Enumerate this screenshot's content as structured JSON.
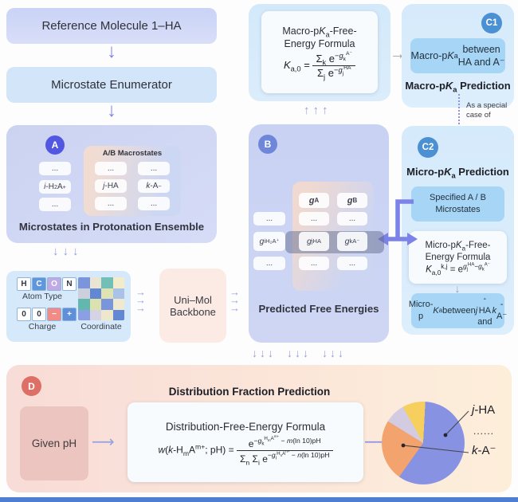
{
  "arrows": {
    "down": "↓",
    "right": "→",
    "long_right": "⟶",
    "up3": "↑↑↑",
    "down3": "↓↓↓"
  },
  "colors": {
    "accent_purple": "#7b82e8",
    "panel_periwinkle": "#ccd4f2",
    "panel_lightblue": "#d5eafb",
    "badge_a": "#5257e2",
    "badge_b": "#6e87d8",
    "badge_c": "#4a90d2",
    "badge_d": "#dd6f66",
    "backbone_peach": "#fcebe4",
    "panel_pink": "#f8dcd7"
  },
  "left_flow": {
    "reference": "Reference Molecule 1–HA",
    "enumerator": "Microstate Enumerator"
  },
  "panel_a": {
    "badge": "A",
    "inner_title": "A/B Macrostates",
    "col_i": [
      [
        [
          "txt",
          "..."
        ]
      ],
      [
        [
          "it",
          "i"
        ],
        [
          "txt",
          "-H"
        ],
        [
          "sub",
          "2"
        ],
        [
          "txt",
          "A"
        ],
        [
          "sup",
          "+"
        ]
      ],
      [
        [
          "txt",
          "..."
        ]
      ]
    ],
    "col_j": [
      [
        [
          "txt",
          "..."
        ]
      ],
      [
        [
          "it",
          "j"
        ],
        [
          "txt",
          "-HA"
        ]
      ],
      [
        [
          "txt",
          "..."
        ]
      ]
    ],
    "col_k": [
      [
        [
          "txt",
          "..."
        ]
      ],
      [
        [
          "it",
          "k"
        ],
        [
          "txt",
          "-A"
        ],
        [
          "sup",
          "−"
        ]
      ],
      [
        [
          "txt",
          "..."
        ]
      ]
    ],
    "caption": "Microstates in Protonation Ensemble"
  },
  "encoder": {
    "atom_cells": [
      {
        "label": "H",
        "bg": "#ffffff",
        "fg": "#333644"
      },
      {
        "label": "C",
        "bg": "#5f97dd",
        "fg": "#ffffff"
      },
      {
        "label": "O",
        "bg": "#c0aae6",
        "fg": "#ffffff"
      },
      {
        "label": "N",
        "bg": "#ffffff",
        "fg": "#333644"
      }
    ],
    "atom_label": "Atom Type",
    "charge_cells": [
      {
        "label": "0",
        "bg": "#ffffff",
        "fg": "#333644"
      },
      {
        "label": "0",
        "bg": "#ffffff",
        "fg": "#333644"
      },
      {
        "label": "−",
        "bg": "#f28b85",
        "fg": "#ffffff"
      },
      {
        "label": "+",
        "bg": "#5f8fd9",
        "fg": "#ffffff"
      }
    ],
    "charge_label": "Charge",
    "coordinate_label": "Coordinate",
    "grid_colors": [
      "#7b95dd",
      "#eae5d3",
      "#72bfb7",
      "#f3ecca",
      "#ccd0dc",
      "#6288d4",
      "#dde3b2",
      "#a9c3e8",
      "#62b8ae",
      "#dbe2af",
      "#7b95dd",
      "#efe9cf",
      "#8aa0e2",
      "#d6d4e4",
      "#eee7cb",
      "#6288d4"
    ]
  },
  "backbone": "Uni–Mol Backbone",
  "macro_panel": {
    "title": [
      [
        "txt",
        "Macro-p"
      ],
      [
        "it",
        "K"
      ],
      [
        "sub",
        "a"
      ],
      [
        "txt",
        "-Free-"
      ],
      [
        "br"
      ],
      [
        "txt",
        "Energy Formula"
      ]
    ],
    "formula": [
      [
        "it",
        "K"
      ],
      [
        "sub",
        "a,0"
      ],
      [
        "txt",
        " = "
      ],
      [
        "frac",
        [
          [
            "txt",
            "Σ"
          ],
          [
            "sub",
            "k"
          ],
          [
            "txt",
            " e"
          ],
          [
            "sup",
            [
              [
                "txt",
                "−"
              ],
              [
                "it",
                "g"
              ],
              [
                "sub",
                "k"
              ],
              [
                "sup",
                "A⁻"
              ]
            ]
          ]
        ],
        [
          [
            "txt",
            "Σ"
          ],
          [
            "sub",
            "j"
          ],
          [
            "txt",
            " e"
          ],
          [
            "sup",
            [
              [
                "txt",
                "−"
              ],
              [
                "it",
                "g"
              ],
              [
                "sub",
                "j"
              ],
              [
                "sup",
                "HA"
              ]
            ]
          ]
        ]
      ]
    ]
  },
  "c1": {
    "badge": "C1",
    "result_box": [
      [
        "txt",
        "Macro-p"
      ],
      [
        "it",
        "K"
      ],
      [
        "sub",
        "a"
      ],
      [
        "txt",
        " between"
      ],
      [
        "br"
      ],
      [
        "txt",
        "HA and A⁻"
      ]
    ],
    "label": [
      [
        "txt",
        "Macro-p"
      ],
      [
        "it",
        "K"
      ],
      [
        "sub",
        "a"
      ],
      [
        "txt",
        " Prediction"
      ]
    ],
    "note": "As a special case of"
  },
  "panel_b": {
    "badge": "B",
    "header_a": [
      [
        "it",
        "g"
      ],
      [
        "sup",
        "A"
      ]
    ],
    "header_b": [
      [
        "it",
        "g"
      ],
      [
        "sup",
        "B"
      ]
    ],
    "col_i": [
      [
        [
          "txt",
          "..."
        ]
      ],
      [
        [
          "it",
          "g"
        ],
        [
          "sub",
          "i"
        ],
        [
          "sup",
          "H₂A⁺"
        ]
      ],
      [
        [
          "txt",
          "..."
        ]
      ]
    ],
    "col_a": [
      [
        [
          "txt",
          "..."
        ]
      ],
      [
        [
          "it",
          "g"
        ],
        [
          "sub",
          "j"
        ],
        [
          "sup",
          "HA"
        ]
      ],
      [
        [
          "txt",
          "..."
        ]
      ]
    ],
    "col_b": [
      [
        [
          "txt",
          "..."
        ]
      ],
      [
        [
          "it",
          "g"
        ],
        [
          "sub",
          "k"
        ],
        [
          "sup",
          "A⁻"
        ]
      ],
      [
        [
          "txt",
          "..."
        ]
      ]
    ],
    "caption": "Predicted Free Energies"
  },
  "c2": {
    "badge": "C2",
    "title": [
      [
        "txt",
        "Micro-p"
      ],
      [
        "it",
        "K"
      ],
      [
        "sub",
        "a"
      ],
      [
        "txt",
        " Prediction"
      ]
    ],
    "spec_box": [
      [
        "txt",
        "Specified A / B"
      ],
      [
        "br"
      ],
      [
        "txt",
        "Microstates"
      ]
    ],
    "formula_title": [
      [
        "txt",
        "Micro-p"
      ],
      [
        "it",
        "K"
      ],
      [
        "sub",
        "a"
      ],
      [
        "txt",
        "-Free-"
      ],
      [
        "br"
      ],
      [
        "txt",
        "Energy Formula"
      ]
    ],
    "formula": [
      [
        "it",
        "K"
      ],
      [
        "sub",
        "a,0"
      ],
      [
        "sup",
        "k,j"
      ],
      [
        "txt",
        " = e"
      ],
      [
        "sup",
        [
          [
            "it",
            "g"
          ],
          [
            "sub",
            "j"
          ],
          [
            "sup",
            "HA"
          ],
          [
            "txt",
            "−"
          ],
          [
            "it",
            "g"
          ],
          [
            "sub",
            "k"
          ],
          [
            "sup",
            "A⁻"
          ]
        ]
      ]
    ],
    "result_box": [
      [
        "txt",
        "Micro-p"
      ],
      [
        "it",
        "K"
      ],
      [
        "sub",
        "a"
      ],
      [
        "txt",
        " between"
      ],
      [
        "br"
      ],
      [
        "it",
        "j"
      ],
      [
        "txt",
        "-HA and "
      ],
      [
        "it",
        "k"
      ],
      [
        "txt",
        "-A⁻"
      ]
    ]
  },
  "panel_d": {
    "badge": "D",
    "title": "Distribution Fraction Prediction",
    "given_box": "Given pH",
    "formula_title": "Distribution-Free-Energy Formula",
    "formula": [
      [
        "it",
        "w"
      ],
      [
        "txt",
        "("
      ],
      [
        "it",
        "k"
      ],
      [
        "txt",
        "-H"
      ],
      [
        "sub",
        "m"
      ],
      [
        "txt",
        "A"
      ],
      [
        "sup",
        "m+"
      ],
      [
        "txt",
        "; pH) = "
      ],
      [
        "frac",
        [
          [
            "txt",
            "e"
          ],
          [
            "sup",
            [
              [
                "txt",
                "−"
              ],
              [
                "it",
                "g"
              ],
              [
                "sub",
                "k"
              ],
              [
                "sup",
                [
                  [
                    "txt",
                    "H"
                  ],
                  [
                    "sub",
                    "m"
                  ],
                  [
                    "txt",
                    "A"
                  ],
                  [
                    "sup",
                    "m+"
                  ]
                ]
              ],
              [
                "txt",
                " − "
              ],
              [
                "it",
                "m"
              ],
              [
                "txt",
                "(ln 10)pH"
              ]
            ]
          ]
        ],
        [
          [
            "txt",
            "Σ"
          ],
          [
            "sub",
            "n"
          ],
          [
            "txt",
            " Σ"
          ],
          [
            "sub",
            "i"
          ],
          [
            "txt",
            " e"
          ],
          [
            "sup",
            [
              [
                "txt",
                "−"
              ],
              [
                "it",
                "g"
              ],
              [
                "sub",
                "i"
              ],
              [
                "sup",
                [
                  [
                    "txt",
                    "H"
                  ],
                  [
                    "sub",
                    "n"
                  ],
                  [
                    "txt",
                    "A"
                  ],
                  [
                    "sup",
                    "n+"
                  ]
                ]
              ],
              [
                "txt",
                " − "
              ],
              [
                "it",
                "n"
              ],
              [
                "txt",
                "(ln 10)pH"
              ]
            ]
          ]
        ]
      ]
    ]
  },
  "pie": {
    "start_deg": 3,
    "slices": [
      {
        "label": "j-HA",
        "color": "#8792e3",
        "percent": 59
      },
      {
        "label": "k-A⁻",
        "color": "#f2a36e",
        "percent": 24
      },
      {
        "label": "other-1",
        "color": "#d2cbe2",
        "percent": 8
      },
      {
        "label": "other-2",
        "color": "#f6cf5f",
        "percent": 9
      }
    ],
    "label_jha": [
      [
        "it",
        "j"
      ],
      [
        "txt",
        "-HA"
      ]
    ],
    "label_dots": "......",
    "label_ka": [
      [
        "it",
        "k"
      ],
      [
        "txt",
        "-A⁻"
      ]
    ]
  }
}
